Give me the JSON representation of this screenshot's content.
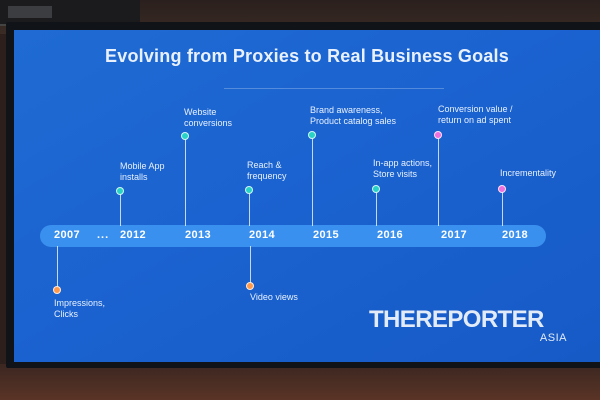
{
  "slide": {
    "title": "Evolving from Proxies to Real Business Goals",
    "ellipsis": "...",
    "years": [
      "2007",
      "2012",
      "2013",
      "2014",
      "2015",
      "2016",
      "2017",
      "2018"
    ],
    "events_above": [
      {
        "text": "Mobile App\ninstalls",
        "year": "2012",
        "color": "#27d3c6"
      },
      {
        "text": "Website\nconversions",
        "year": "2013",
        "color": "#27d3c6"
      },
      {
        "text": "Reach &\nfrequency",
        "year": "2014",
        "color": "#27d3c6"
      },
      {
        "text": "Brand awareness,\nProduct catalog sales",
        "year": "2015",
        "color": "#27d3c6"
      },
      {
        "text": "In-app actions,\nStore visits",
        "year": "2016",
        "color": "#27d3c6"
      },
      {
        "text": "Conversion value /\nreturn on ad spent",
        "year": "2017",
        "color": "#ee6fe0"
      },
      {
        "text": "Incrementality",
        "year": "2018",
        "color": "#ee6fe0"
      }
    ],
    "events_below": [
      {
        "text": "Impressions,\nClicks",
        "year": "2007",
        "color": "#ff9a4d"
      },
      {
        "text": "Video views",
        "year": "2014",
        "color": "#ff9a4d"
      }
    ]
  },
  "watermark": {
    "text": "THEREPORTER",
    "sub": "ASIA"
  }
}
